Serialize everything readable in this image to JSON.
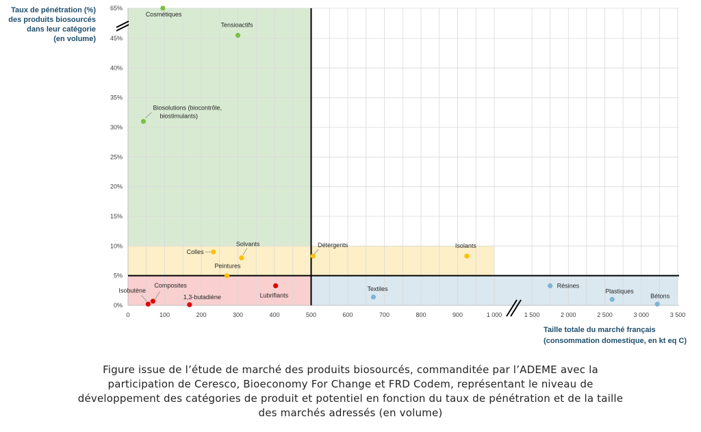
{
  "chart_data": {
    "type": "scatter",
    "ylabel_lines": [
      "Taux de pénétration (%)",
      "des produits biosourcés",
      "dans leur catégorie",
      "(en volume)"
    ],
    "xlabel_lines": [
      "Taille totale du marché français",
      "(consommation domestique, en kt eq C)"
    ],
    "y_ticks": [
      "0%",
      "5%",
      "10%",
      "15%",
      "20%",
      "25%",
      "30%",
      "35%",
      "40%",
      "45%",
      "65%"
    ],
    "x_ticks_left": [
      "0",
      "100",
      "200",
      "300",
      "400",
      "500",
      "600",
      "700",
      "800",
      "900",
      "1 000"
    ],
    "x_ticks_right": [
      "1 500",
      "2 000",
      "2 500",
      "3 000",
      "3 500"
    ],
    "axis_breaks": [
      "y",
      "x"
    ],
    "grid": true,
    "quadrant_lines": {
      "x": 500,
      "y": 5
    },
    "regions": [
      {
        "color": "#d9ead3",
        "x_range": [
          0,
          500
        ],
        "y_range": [
          10,
          65
        ]
      },
      {
        "color": "#fdefc7",
        "x_range": [
          0,
          1000
        ],
        "y_range": [
          5,
          10
        ]
      },
      {
        "color": "#f9cfcf",
        "x_range": [
          0,
          500
        ],
        "y_range": [
          0,
          5
        ]
      },
      {
        "color": "#dbe8f0",
        "x_range": [
          500,
          3500
        ],
        "y_range": [
          0,
          5
        ]
      }
    ],
    "points": [
      {
        "label": "Cosmétiques",
        "x": 95,
        "y": 65,
        "color": "#7ac143"
      },
      {
        "label": "Tensioactifs",
        "x": 300,
        "y": 47,
        "color": "#7ac143"
      },
      {
        "label": "Biosolutions (biocontrôle, biostimulants)",
        "label_lines": [
          "Biosolutions (biocontrôle,",
          "biostimulants)"
        ],
        "x": 42,
        "y": 31,
        "color": "#7ac143"
      },
      {
        "label": "Colles",
        "x": 233,
        "y": 9,
        "color": "#ffc000"
      },
      {
        "label": "Solvants",
        "x": 310,
        "y": 8,
        "color": "#ffc000"
      },
      {
        "label": "Peintures",
        "x": 270,
        "y": 5,
        "color": "#ffc000"
      },
      {
        "label": "Détergents",
        "x": 505,
        "y": 8.3,
        "color": "#ffc000"
      },
      {
        "label": "Isolants",
        "x": 925,
        "y": 8.3,
        "color": "#ffc000"
      },
      {
        "label": "Isobutène",
        "x": 55,
        "y": 0.2,
        "color": "#e00000"
      },
      {
        "label": "Composites",
        "x": 68,
        "y": 0.7,
        "color": "#e00000"
      },
      {
        "label": "1,3-butadiène",
        "x": 168,
        "y": 0.1,
        "color": "#e00000"
      },
      {
        "label": "Lubrifiants",
        "x": 403,
        "y": 3.3,
        "color": "#e00000"
      },
      {
        "label": "Textiles",
        "x": 670,
        "y": 1.4,
        "color": "#7fb5d3"
      },
      {
        "label": "Résines",
        "x": 1750,
        "y": 3.3,
        "color": "#7fb5d3"
      },
      {
        "label": "Plastiques",
        "x": 2600,
        "y": 1.0,
        "color": "#7fb5d3"
      },
      {
        "label": "Bétons",
        "x": 3220,
        "y": 0.2,
        "color": "#7fb5d3"
      }
    ]
  },
  "caption": {
    "lines": [
      "Figure issue de l’étude de marché des produits biosourcés, commanditée par l’ADEME avec la",
      "participation de Ceresco, Bioeconomy For Change et FRD Codem, représentant le niveau de",
      "développement des catégories de produit et potentiel en fonction du taux de pénétration et de la taille",
      "des marchés adressés (en volume)"
    ]
  }
}
